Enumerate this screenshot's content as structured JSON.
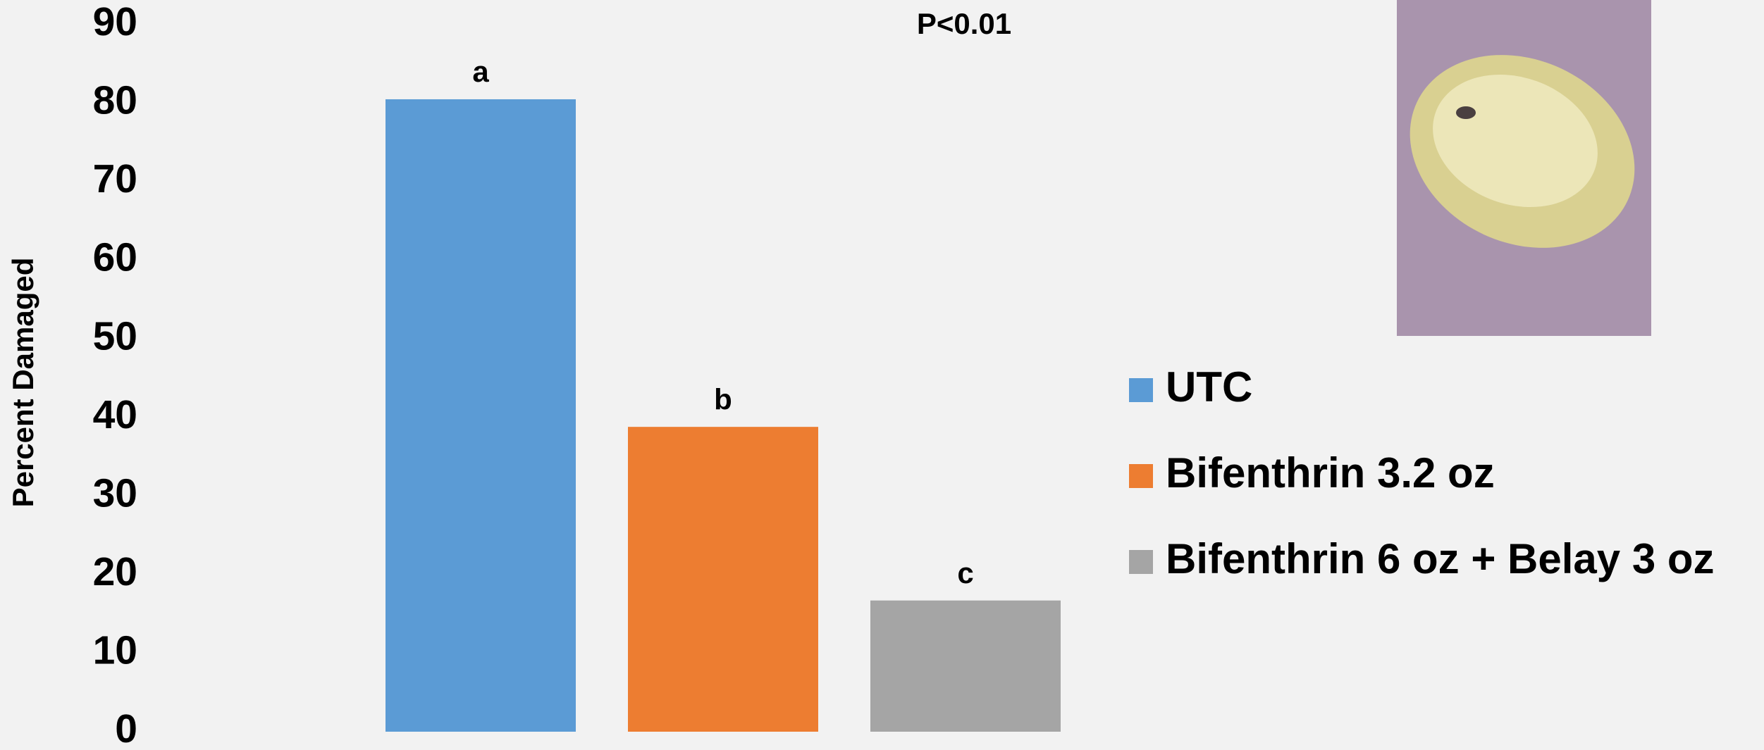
{
  "chart_data": {
    "type": "bar",
    "annotation": "P<0.01",
    "y_label": "Percent Damaged",
    "series": [
      {
        "name": "UTC",
        "color": "#5b9bd5",
        "values": [
          80.5
        ],
        "letter": "a"
      },
      {
        "name": "Bifenthrin 3.2 oz",
        "color": "#ed7d31",
        "values": [
          38.8
        ],
        "letter": "b"
      },
      {
        "name": "Bifenthrin 6 oz + Belay 3 oz",
        "color": "#a5a5a5",
        "values": [
          16.7
        ],
        "letter": "c"
      }
    ],
    "ylim": [
      0,
      90
    ],
    "yticks": [
      0,
      10,
      20,
      30,
      40,
      50,
      60,
      70,
      80,
      90
    ],
    "grid": false,
    "legend": "right"
  }
}
